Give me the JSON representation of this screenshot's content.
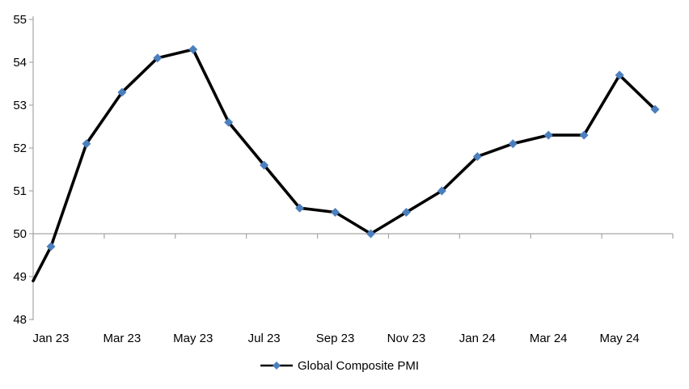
{
  "chart_data": {
    "type": "line",
    "title": "",
    "xlabel": "",
    "ylabel": "",
    "categories": [
      "Jan 23",
      "Feb 23",
      "Mar 23",
      "Apr 23",
      "May 23",
      "Jun 23",
      "Jul 23",
      "Aug 23",
      "Sep 23",
      "Oct 23",
      "Nov 23",
      "Dec 23",
      "Jan 24",
      "Feb 24",
      "Mar 24",
      "Apr 24",
      "May 24",
      "Jun 24"
    ],
    "series": [
      {
        "name": "Global Composite PMI",
        "values": [
          49.7,
          52.1,
          53.3,
          54.1,
          54.3,
          52.6,
          51.6,
          50.6,
          50.5,
          50.0,
          50.5,
          51.0,
          51.8,
          52.1,
          52.3,
          52.3,
          53.7,
          52.9
        ]
      }
    ],
    "edge_entry": {
      "value": 48.9,
      "note": "line enters the plot clipped at the left axis (point prior to Jan 23 off-chart)"
    },
    "x_tick_labels": [
      "Jan 23",
      "Mar 23",
      "May 23",
      "Jul 23",
      "Sep 23",
      "Nov 23",
      "Jan 24",
      "Mar 24",
      "May 24"
    ],
    "y_ticks": [
      48,
      49,
      50,
      51,
      52,
      53,
      54,
      55
    ],
    "ylim": [
      48,
      55
    ],
    "x_axis_cross_value": 50,
    "grid": "off",
    "legend": {
      "position": "bottom-center",
      "label": "Global Composite PMI"
    },
    "colors": {
      "line": "#000000",
      "marker": "#4C7FBE",
      "axis": "#A6A6A6",
      "text": "#000000",
      "background": "#FFFFFF"
    }
  }
}
